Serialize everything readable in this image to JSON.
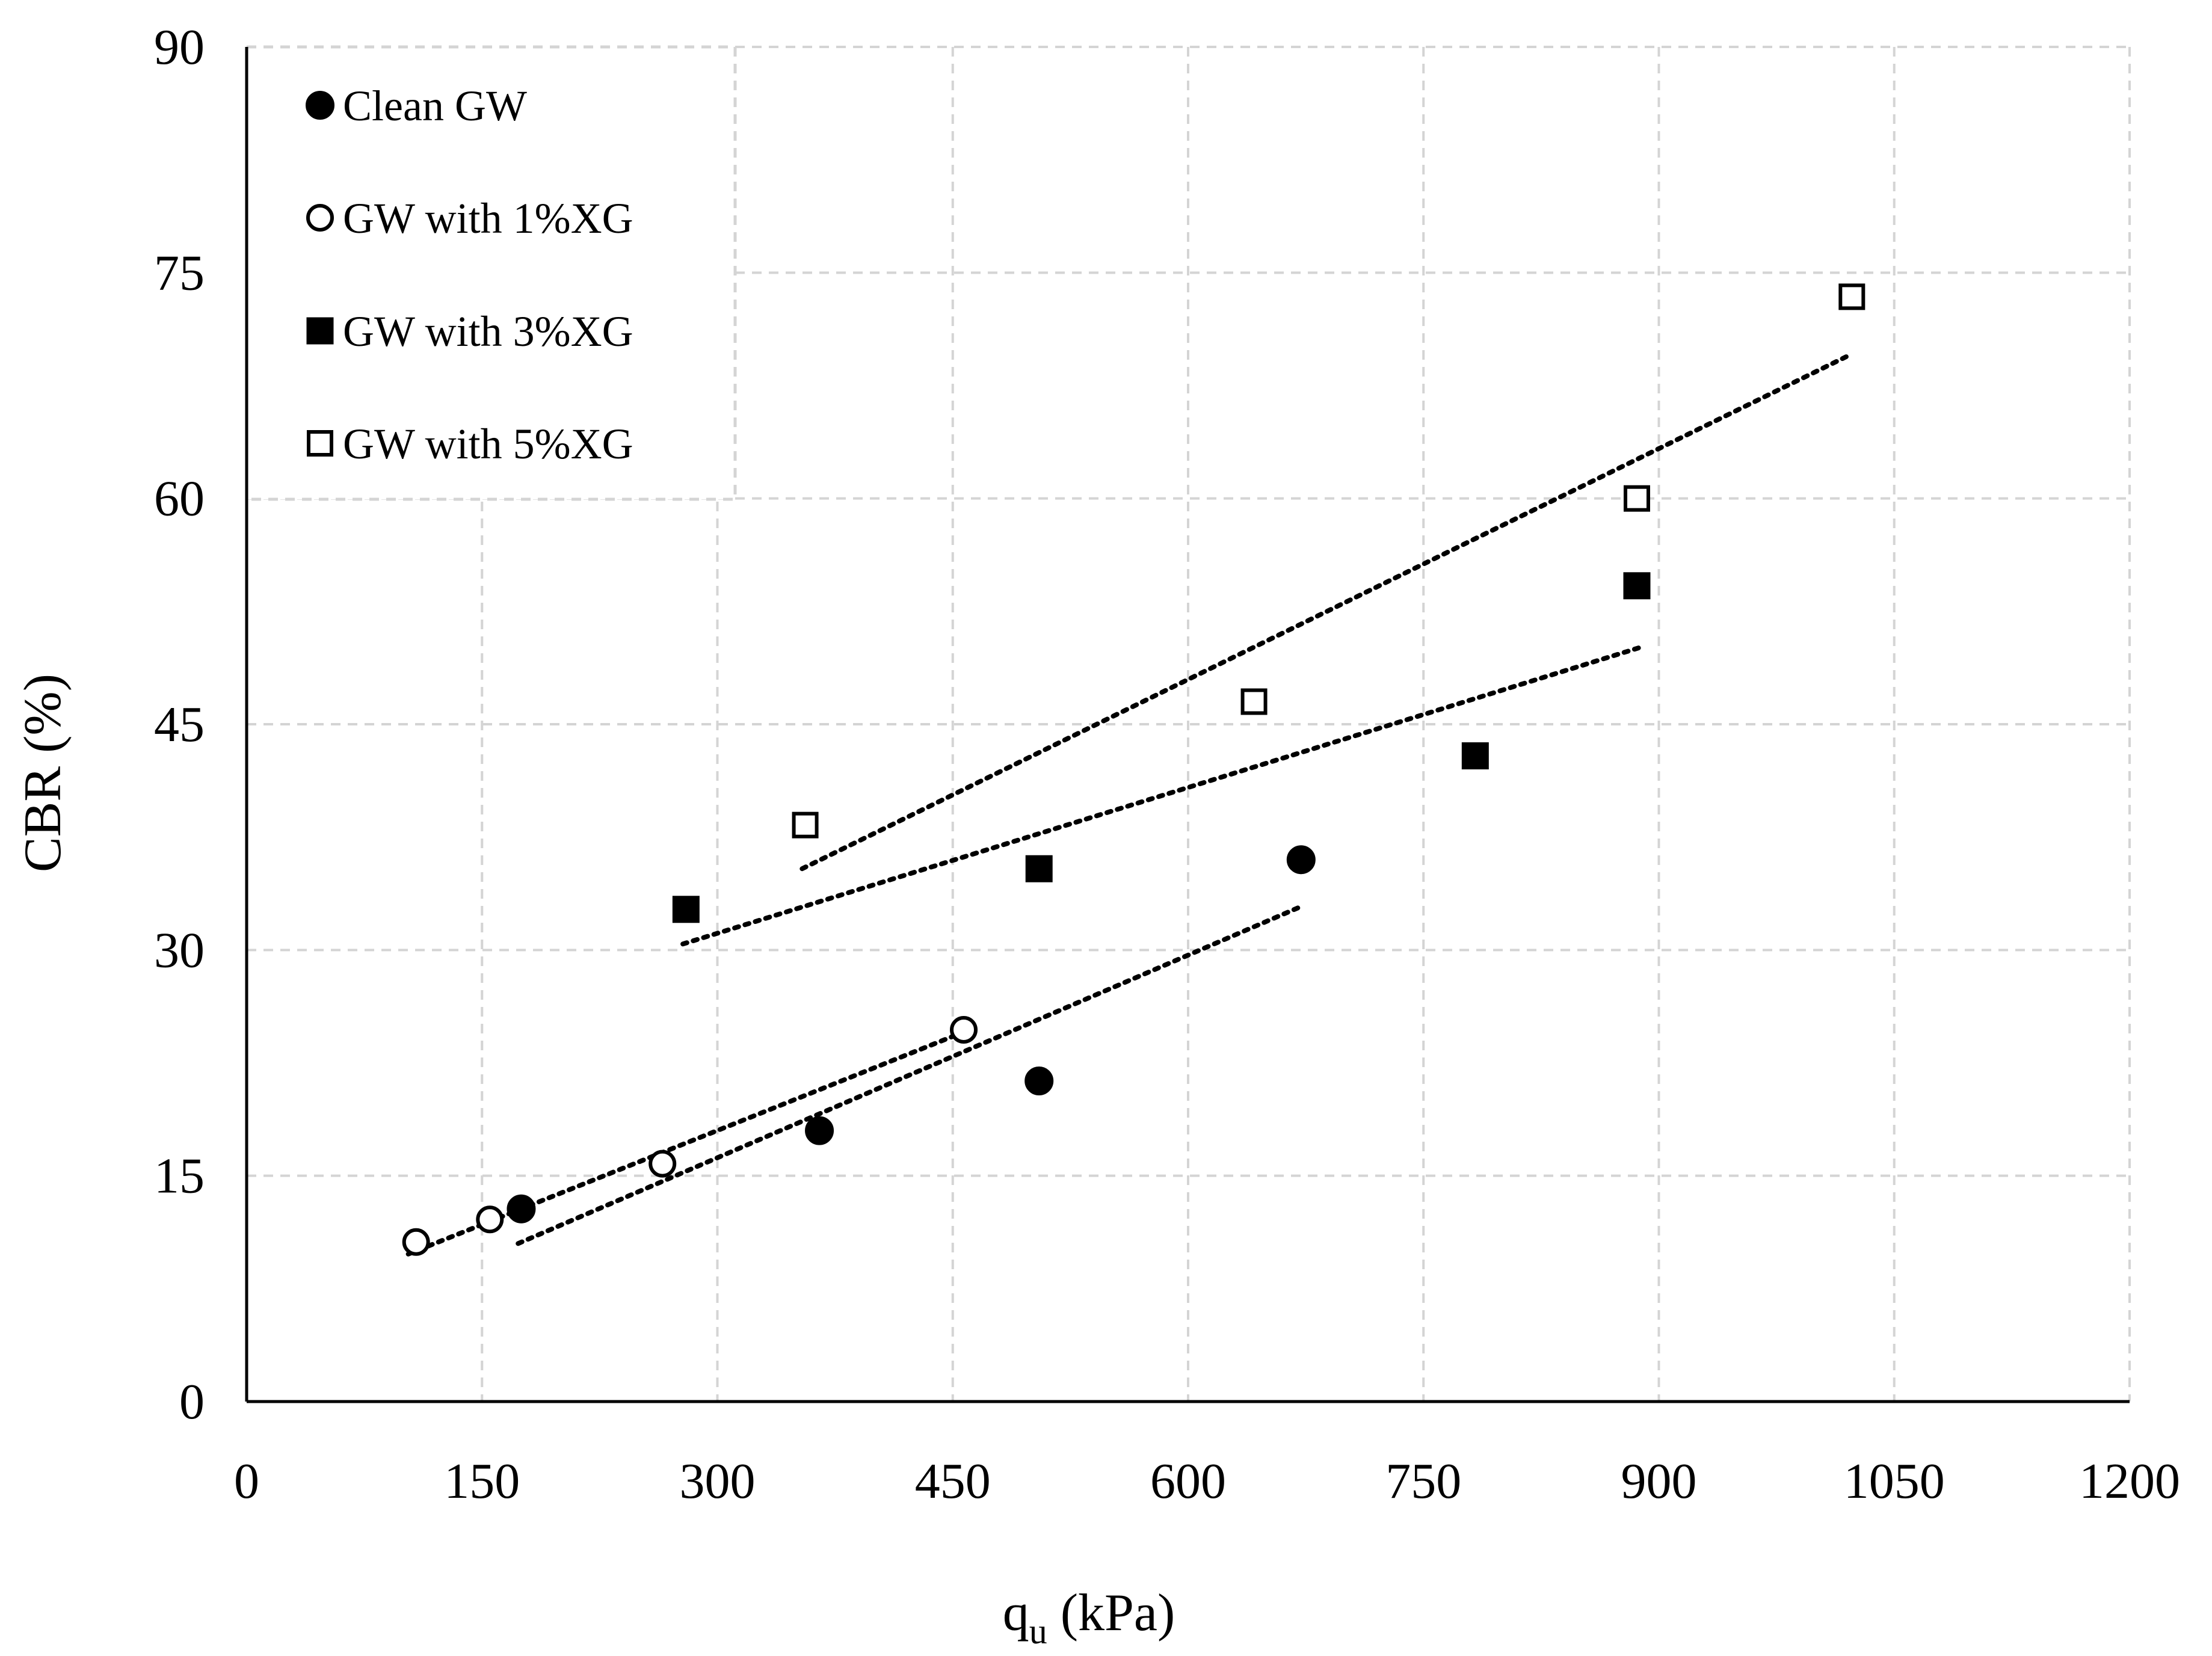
{
  "chart_data": {
    "type": "scatter",
    "title": "",
    "xlabel": {
      "main": "q",
      "subscript": "u",
      "unit": " (kPa)"
    },
    "ylabel": "CBR (%)",
    "xlim": [
      0,
      1200
    ],
    "ylim": [
      0,
      90
    ],
    "xticks": [
      0,
      150,
      300,
      450,
      600,
      750,
      900,
      1050,
      1200
    ],
    "yticks": [
      0,
      15,
      30,
      45,
      60,
      75,
      90
    ],
    "grid": true,
    "legend_position": "top-left",
    "series": [
      {
        "name": "Clean GW",
        "marker": "filled-circle",
        "points": [
          [
            175,
            12.8
          ],
          [
            365,
            18.0
          ],
          [
            505,
            21.3
          ],
          [
            672,
            36.0
          ]
        ],
        "trendline": [
          [
            173,
            10.5
          ],
          [
            670,
            32.8
          ]
        ]
      },
      {
        "name": "GW with 1%XG",
        "marker": "open-circle",
        "points": [
          [
            108,
            10.6
          ],
          [
            155,
            12.1
          ],
          [
            265,
            15.8
          ],
          [
            457,
            24.7
          ]
        ],
        "trendline": [
          [
            103,
            9.8
          ],
          [
            463,
            24.8
          ]
        ]
      },
      {
        "name": "GW with 3%XG",
        "marker": "filled-square",
        "points": [
          [
            280,
            32.7
          ],
          [
            505,
            35.4
          ],
          [
            783,
            42.9
          ],
          [
            886,
            54.2
          ]
        ],
        "trendline": [
          [
            278,
            30.4
          ],
          [
            888,
            50.1
          ]
        ]
      },
      {
        "name": "GW with 5%XG",
        "marker": "open-square",
        "points": [
          [
            356,
            38.3
          ],
          [
            642,
            46.5
          ],
          [
            886,
            60.0
          ],
          [
            1023,
            73.4
          ]
        ],
        "trendline": [
          [
            354,
            35.4
          ],
          [
            1023,
            69.6
          ]
        ]
      }
    ]
  }
}
